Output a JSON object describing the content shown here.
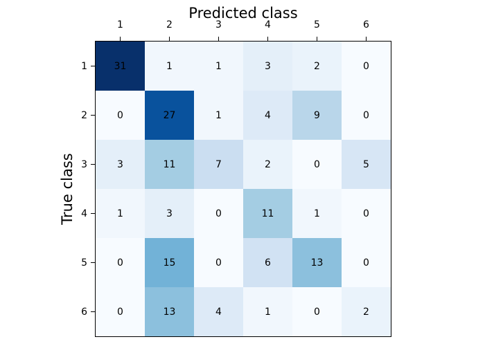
{
  "figure": {
    "background": "#ffffff"
  },
  "chart_data": {
    "type": "heatmap",
    "title": "",
    "xlabel": "Predicted class",
    "ylabel": "True class",
    "xlabel_position": "top",
    "ylabel_position": "left",
    "x_tick_labels": [
      "1",
      "2",
      "3",
      "4",
      "5",
      "6"
    ],
    "y_tick_labels": [
      "1",
      "2",
      "3",
      "4",
      "5",
      "6"
    ],
    "matrix": [
      [
        31,
        1,
        1,
        3,
        2,
        0
      ],
      [
        0,
        27,
        1,
        4,
        9,
        0
      ],
      [
        3,
        11,
        7,
        2,
        0,
        5
      ],
      [
        1,
        3,
        0,
        11,
        1,
        0
      ],
      [
        0,
        15,
        0,
        6,
        13,
        0
      ],
      [
        0,
        13,
        4,
        1,
        0,
        2
      ]
    ],
    "vmin": 0,
    "vmax": 31,
    "colormap": {
      "name": "Blues",
      "anchors": [
        {
          "pos": 0.0,
          "color": "#f7fbff"
        },
        {
          "pos": 0.125,
          "color": "#deebf7"
        },
        {
          "pos": 0.25,
          "color": "#c6dbef"
        },
        {
          "pos": 0.375,
          "color": "#9ecae1"
        },
        {
          "pos": 0.5,
          "color": "#6baed6"
        },
        {
          "pos": 0.625,
          "color": "#4292c6"
        },
        {
          "pos": 0.75,
          "color": "#2171b5"
        },
        {
          "pos": 0.875,
          "color": "#08519c"
        },
        {
          "pos": 1.0,
          "color": "#08306b"
        }
      ]
    },
    "annotation_color": "#000000",
    "axis_color": "#000000",
    "grid": false,
    "legend": "none",
    "colorbar": "none"
  }
}
